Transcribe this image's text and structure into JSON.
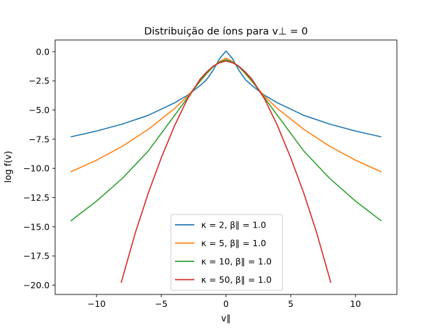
{
  "chart_data": {
    "type": "line",
    "title": "Distribuição de íons para v⊥ = 0",
    "xlabel": "v∥",
    "ylabel": "log f(v)",
    "xlim": [
      -13.2,
      13.2
    ],
    "ylim": [
      -20.8,
      1.0
    ],
    "xticks": [
      -10,
      -5,
      0,
      5,
      10
    ],
    "xtick_labels": [
      "−10",
      "−5",
      "0",
      "5",
      "10"
    ],
    "yticks": [
      0.0,
      -2.5,
      -5.0,
      -7.5,
      -10.0,
      -12.5,
      -15.0,
      -17.5,
      -20.0
    ],
    "ytick_labels": [
      "0.0",
      "−2.5",
      "−5.0",
      "−7.5",
      "−10.0",
      "−12.5",
      "−15.0",
      "−17.5",
      "−20.0"
    ],
    "grid": false,
    "legend_position": "bottom-center",
    "series": [
      {
        "name": "κ = 2, β∥ = 1.0",
        "color": "#1f77b4",
        "x": [
          -12,
          -10,
          -8,
          -6,
          -4,
          -3,
          -2,
          -1.5,
          -1,
          -0.5,
          0,
          0.5,
          1,
          1.5,
          2,
          3,
          4,
          6,
          8,
          10,
          12
        ],
        "y": [
          -7.3,
          -6.8,
          -6.2,
          -5.45,
          -4.4,
          -3.75,
          -2.9,
          -2.4,
          -1.6,
          -0.6,
          0.05,
          -0.6,
          -1.6,
          -2.4,
          -2.9,
          -3.75,
          -4.4,
          -5.45,
          -6.2,
          -6.8,
          -7.3
        ]
      },
      {
        "name": "κ = 5, β∥ = 1.0",
        "color": "#ff7f0e",
        "x": [
          -12,
          -10,
          -8,
          -6,
          -4,
          -3,
          -2,
          -1.5,
          -1,
          -0.5,
          0,
          0.5,
          1,
          1.5,
          2,
          3,
          4,
          6,
          8,
          10,
          12
        ],
        "y": [
          -10.3,
          -9.3,
          -8.1,
          -6.65,
          -4.9,
          -3.85,
          -2.55,
          -1.9,
          -1.3,
          -0.85,
          -0.55,
          -0.85,
          -1.3,
          -1.9,
          -2.55,
          -3.85,
          -4.9,
          -6.65,
          -8.1,
          -9.3,
          -10.3
        ]
      },
      {
        "name": "κ = 10, β∥ = 1.0",
        "color": "#2ca02c",
        "x": [
          -12,
          -10,
          -8,
          -6,
          -4,
          -3,
          -2,
          -1.5,
          -1,
          -0.5,
          0,
          0.5,
          1,
          1.5,
          2,
          3,
          4,
          6,
          8,
          10,
          12
        ],
        "y": [
          -14.5,
          -12.8,
          -10.85,
          -8.5,
          -5.5,
          -4.0,
          -2.5,
          -1.85,
          -1.3,
          -0.9,
          -0.7,
          -0.9,
          -1.3,
          -1.85,
          -2.5,
          -4.0,
          -5.5,
          -8.5,
          -10.85,
          -12.8,
          -14.5
        ]
      },
      {
        "name": "κ = 50, β∥ = 1.0",
        "color": "#d62728",
        "x": [
          -8.1,
          -7,
          -6,
          -5,
          -4,
          -3,
          -2,
          -1.5,
          -1,
          -0.5,
          0,
          0.5,
          1,
          1.5,
          2,
          3,
          4,
          5,
          6,
          7,
          8.1
        ],
        "y": [
          -19.8,
          -15.5,
          -12.1,
          -9.1,
          -6.4,
          -4.1,
          -2.35,
          -1.75,
          -1.25,
          -0.95,
          -0.8,
          -0.95,
          -1.25,
          -1.75,
          -2.35,
          -4.1,
          -6.4,
          -9.1,
          -12.1,
          -15.5,
          -19.8
        ]
      }
    ]
  }
}
